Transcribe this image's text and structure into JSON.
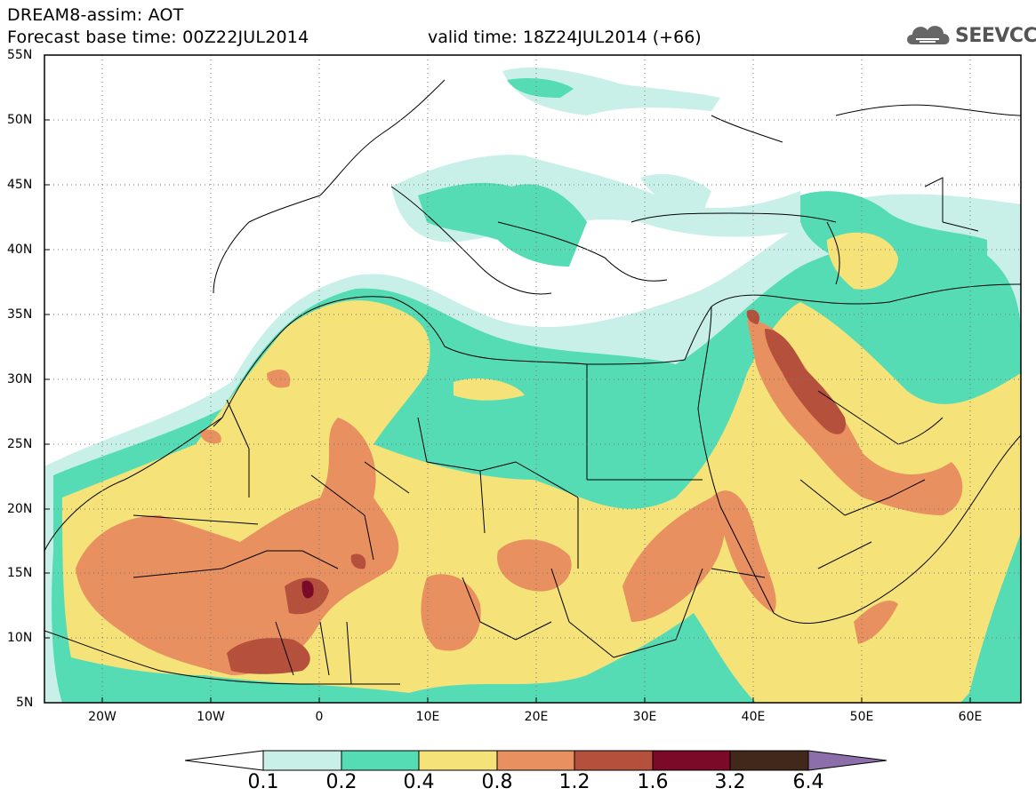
{
  "header": {
    "title": "DREAM8-assim: AOT",
    "base_time": "Forecast base time: 00Z22JUL2014",
    "valid_time": "valid time: 18Z24JUL2014 (+66)"
  },
  "logo": {
    "text": "SEEVCCC",
    "icon": "cloud-icon"
  },
  "map": {
    "lat_labels": [
      "55N",
      "50N",
      "45N",
      "40N",
      "35N",
      "30N",
      "25N",
      "20N",
      "15N",
      "10N",
      "5N"
    ],
    "lon_labels": [
      "20W",
      "10W",
      "0",
      "10E",
      "20E",
      "30E",
      "40E",
      "50E",
      "60E"
    ],
    "extent": {
      "lon_min": -25,
      "lon_max": 65,
      "lat_min": 5,
      "lat_max": 55
    }
  },
  "colorbar": {
    "labels": [
      "0.1",
      "0.2",
      "0.4",
      "0.8",
      "1.2",
      "1.6",
      "3.2",
      "6.4"
    ],
    "colors": [
      "#ffffff",
      "#c8f0e8",
      "#55dcb4",
      "#f5e278",
      "#e8905f",
      "#b4503c",
      "#7a0a28",
      "#40281a",
      "#8c6eaa"
    ]
  }
}
